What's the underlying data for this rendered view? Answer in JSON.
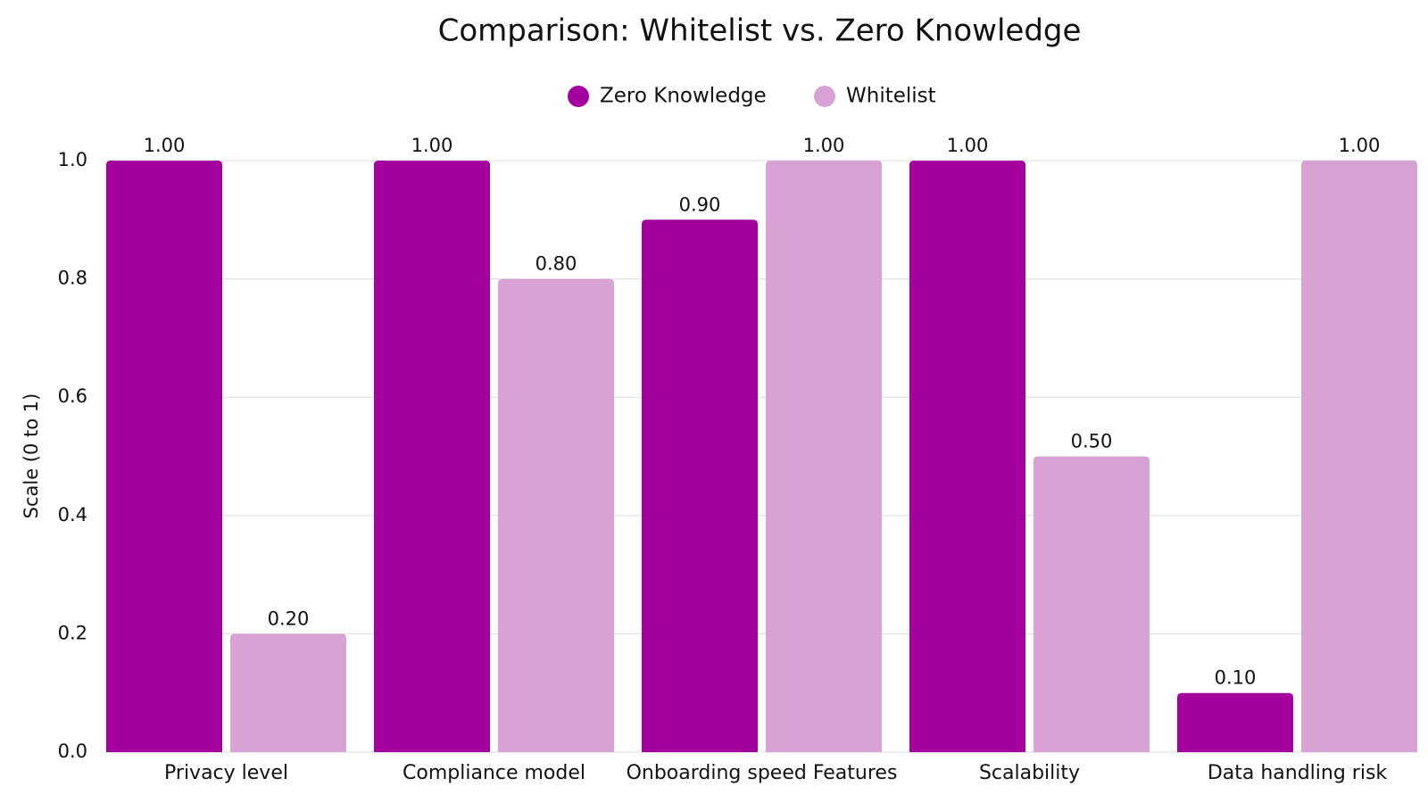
{
  "chart_data": {
    "type": "bar",
    "title": "Comparison: Whitelist vs. Zero Knowledge",
    "y_label": "Scale (0 to 1)",
    "categories": [
      "Privacy level",
      "Compliance model",
      "Onboarding speed Features",
      "Scalability",
      "Data handling risk"
    ],
    "series": [
      {
        "name": "Zero Knowledge",
        "color": "#a3009e",
        "values": [
          1,
          1,
          0.9,
          1,
          0.1
        ],
        "value_labels": [
          "1.00",
          "1.00",
          "0.90",
          "1.00",
          "0.10"
        ]
      },
      {
        "name": "Whitelist",
        "color": "#d8a3d4",
        "values": [
          0.2,
          0.8,
          1,
          0.5,
          1
        ],
        "value_labels": [
          "0.20",
          "0.80",
          "1.00",
          "0.50",
          "1.00"
        ]
      }
    ],
    "ylim": [
      0,
      1
    ],
    "yticks": [
      {
        "value": 0,
        "label": "0.0"
      },
      0.2,
      0.4,
      0.6,
      0.8,
      {
        "value": 1,
        "label": "1.0"
      }
    ],
    "grid": true,
    "legend": "top"
  }
}
